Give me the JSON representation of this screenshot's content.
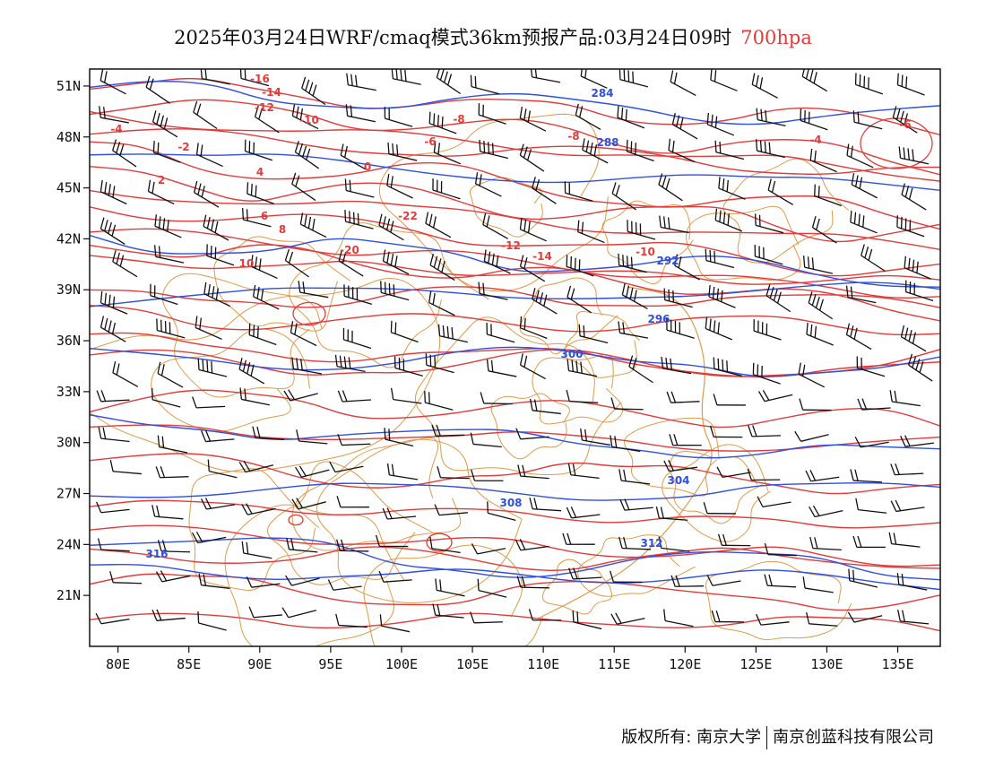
{
  "header": {
    "title": "2025年03月24日WRF/cmaq模式36km预报产品:03月24日09时",
    "level": "700hpa"
  },
  "map": {
    "lat_labels": [
      "51N",
      "48N",
      "45N",
      "42N",
      "39N",
      "36N",
      "33N",
      "30N",
      "27N",
      "24N",
      "21N"
    ],
    "lat_values": [
      51,
      48,
      45,
      42,
      39,
      36,
      33,
      30,
      27,
      24,
      21
    ],
    "lon_labels": [
      "80E",
      "85E",
      "90E",
      "95E",
      "100E",
      "105E",
      "110E",
      "115E",
      "120E",
      "125E",
      "130E",
      "135E"
    ],
    "lon_values": [
      80,
      85,
      90,
      95,
      100,
      105,
      110,
      115,
      120,
      125,
      130,
      135
    ],
    "extent": {
      "lon_min": 78,
      "lon_max": 138,
      "lat_min": 18,
      "lat_max": 52
    },
    "temperature_labels": [
      "-16",
      "-14",
      "-12",
      "-10",
      "-8",
      "-6",
      "-4",
      "-2",
      "0",
      "2",
      "4",
      "6",
      "8",
      "10",
      "-20",
      "-22",
      "-12",
      "-14",
      "-8",
      "-10",
      "-6",
      "-4"
    ],
    "height_labels": [
      "284",
      "288",
      "292",
      "296",
      "300",
      "304",
      "308",
      "312",
      "316"
    ],
    "colors": {
      "temperature": "#e23b3b",
      "height": "#2f4fe0",
      "border": "#e09a4a",
      "wind": "#111111"
    }
  },
  "footer": {
    "copyright": "版权所有: 南京大学",
    "company": "南京创蓝科技有限公司"
  }
}
